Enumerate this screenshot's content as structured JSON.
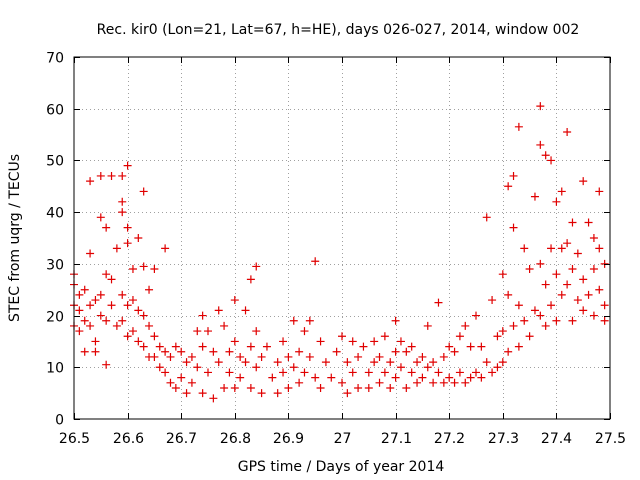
{
  "chart_data": {
    "type": "scatter",
    "title": "Rec. kir0 (Lon=21, Lat=67, h=HE), days 026-027, 2014, window 002",
    "xlabel": "GPS time / Days of year 2014",
    "ylabel": "STEC from uqrg / TECUs",
    "xlim": [
      26.5,
      27.5
    ],
    "ylim": [
      0,
      70
    ],
    "xticks": [
      "26.5",
      "26.6",
      "26.7",
      "26.8",
      "26.9",
      "27",
      "27.1",
      "27.2",
      "27.3",
      "27.4",
      "27.5"
    ],
    "yticks": [
      "0",
      "10",
      "20",
      "30",
      "40",
      "50",
      "60",
      "70"
    ],
    "grid": true,
    "marker": "plus",
    "color": "#e00000",
    "series": [
      {
        "name": "STEC",
        "points": [
          [
            26.5,
            28.0
          ],
          [
            26.5,
            26.0
          ],
          [
            26.5,
            22.0
          ],
          [
            26.5,
            18.0
          ],
          [
            26.51,
            24.0
          ],
          [
            26.51,
            21.0
          ],
          [
            26.51,
            17.0
          ],
          [
            26.52,
            25.0
          ],
          [
            26.52,
            19.0
          ],
          [
            26.52,
            13.0
          ],
          [
            26.53,
            46.0
          ],
          [
            26.53,
            32.0
          ],
          [
            26.53,
            22.0
          ],
          [
            26.53,
            18.0
          ],
          [
            26.54,
            23.0
          ],
          [
            26.54,
            15.0
          ],
          [
            26.54,
            13.0
          ],
          [
            26.55,
            47.0
          ],
          [
            26.55,
            39.0
          ],
          [
            26.55,
            24.0
          ],
          [
            26.55,
            20.0
          ],
          [
            26.56,
            37.0
          ],
          [
            26.56,
            28.0
          ],
          [
            26.56,
            19.0
          ],
          [
            26.56,
            10.5
          ],
          [
            26.57,
            47.0
          ],
          [
            26.57,
            27.0
          ],
          [
            26.57,
            22.0
          ],
          [
            26.58,
            33.0
          ],
          [
            26.58,
            18.0
          ],
          [
            26.59,
            47.0
          ],
          [
            26.59,
            42.0
          ],
          [
            26.59,
            40.0
          ],
          [
            26.59,
            24.0
          ],
          [
            26.59,
            19.0
          ],
          [
            26.6,
            49.0
          ],
          [
            26.6,
            37.0
          ],
          [
            26.6,
            34.0
          ],
          [
            26.6,
            22.0
          ],
          [
            26.6,
            16.0
          ],
          [
            26.61,
            29.0
          ],
          [
            26.61,
            23.0
          ],
          [
            26.61,
            17.0
          ],
          [
            26.62,
            35.0
          ],
          [
            26.62,
            21.0
          ],
          [
            26.62,
            15.0
          ],
          [
            26.63,
            44.0
          ],
          [
            26.63,
            29.5
          ],
          [
            26.63,
            20.0
          ],
          [
            26.63,
            14.0
          ],
          [
            26.64,
            25.0
          ],
          [
            26.64,
            18.0
          ],
          [
            26.64,
            12.0
          ],
          [
            26.65,
            29.0
          ],
          [
            26.65,
            16.0
          ],
          [
            26.65,
            12.0
          ],
          [
            26.66,
            14.0
          ],
          [
            26.66,
            10.0
          ],
          [
            26.67,
            33.0
          ],
          [
            26.67,
            13.0
          ],
          [
            26.67,
            9.0
          ],
          [
            26.68,
            12.0
          ],
          [
            26.68,
            7.0
          ],
          [
            26.69,
            14.0
          ],
          [
            26.69,
            6.0
          ],
          [
            26.7,
            13.0
          ],
          [
            26.7,
            8.0
          ],
          [
            26.71,
            11.0
          ],
          [
            26.71,
            5.0
          ],
          [
            26.72,
            12.0
          ],
          [
            26.72,
            7.0
          ],
          [
            26.73,
            17.0
          ],
          [
            26.73,
            10.0
          ],
          [
            26.74,
            20.0
          ],
          [
            26.74,
            14.0
          ],
          [
            26.74,
            5.0
          ],
          [
            26.75,
            17.0
          ],
          [
            26.75,
            9.0
          ],
          [
            26.76,
            13.0
          ],
          [
            26.76,
            4.0
          ],
          [
            26.77,
            21.0
          ],
          [
            26.77,
            11.0
          ],
          [
            26.78,
            18.0
          ],
          [
            26.78,
            6.0
          ],
          [
            26.79,
            13.0
          ],
          [
            26.79,
            9.0
          ],
          [
            26.8,
            23.0
          ],
          [
            26.8,
            15.0
          ],
          [
            26.8,
            6.0
          ],
          [
            26.81,
            12.0
          ],
          [
            26.81,
            8.0
          ],
          [
            26.82,
            21.0
          ],
          [
            26.82,
            11.0
          ],
          [
            26.83,
            27.0
          ],
          [
            26.83,
            14.0
          ],
          [
            26.83,
            6.0
          ],
          [
            26.84,
            29.5
          ],
          [
            26.84,
            17.0
          ],
          [
            26.84,
            10.0
          ],
          [
            26.85,
            12.0
          ],
          [
            26.85,
            5.0
          ],
          [
            26.86,
            14.0
          ],
          [
            26.87,
            8.0
          ],
          [
            26.88,
            11.0
          ],
          [
            26.88,
            5.0
          ],
          [
            26.89,
            15.0
          ],
          [
            26.89,
            9.0
          ],
          [
            26.9,
            12.0
          ],
          [
            26.9,
            6.0
          ],
          [
            26.91,
            19.0
          ],
          [
            26.91,
            10.0
          ],
          [
            26.92,
            13.0
          ],
          [
            26.92,
            7.0
          ],
          [
            26.93,
            17.0
          ],
          [
            26.93,
            9.0
          ],
          [
            26.94,
            19.0
          ],
          [
            26.94,
            12.0
          ],
          [
            26.95,
            30.5
          ],
          [
            26.95,
            8.0
          ],
          [
            26.96,
            15.0
          ],
          [
            26.96,
            6.0
          ],
          [
            26.97,
            11.0
          ],
          [
            26.98,
            8.0
          ],
          [
            26.99,
            13.0
          ],
          [
            27.0,
            16.0
          ],
          [
            27.0,
            7.0
          ],
          [
            27.01,
            11.0
          ],
          [
            27.01,
            5.0
          ],
          [
            27.02,
            15.0
          ],
          [
            27.02,
            9.0
          ],
          [
            27.03,
            12.0
          ],
          [
            27.03,
            6.0
          ],
          [
            27.04,
            14.0
          ],
          [
            27.05,
            9.0
          ],
          [
            27.05,
            6.0
          ],
          [
            27.06,
            15.0
          ],
          [
            27.06,
            11.0
          ],
          [
            27.07,
            12.0
          ],
          [
            27.07,
            7.0
          ],
          [
            27.08,
            16.0
          ],
          [
            27.08,
            9.0
          ],
          [
            27.09,
            11.0
          ],
          [
            27.09,
            6.0
          ],
          [
            27.1,
            19.0
          ],
          [
            27.1,
            13.0
          ],
          [
            27.1,
            8.0
          ],
          [
            27.11,
            15.0
          ],
          [
            27.11,
            10.0
          ],
          [
            27.12,
            13.0
          ],
          [
            27.12,
            6.0
          ],
          [
            27.13,
            14.0
          ],
          [
            27.13,
            9.0
          ],
          [
            27.14,
            11.0
          ],
          [
            27.14,
            7.0
          ],
          [
            27.15,
            12.0
          ],
          [
            27.15,
            8.0
          ],
          [
            27.16,
            18.0
          ],
          [
            27.16,
            10.0
          ],
          [
            27.17,
            11.0
          ],
          [
            27.17,
            7.0
          ],
          [
            27.18,
            22.5
          ],
          [
            27.18,
            9.0
          ],
          [
            27.19,
            12.0
          ],
          [
            27.19,
            7.0
          ],
          [
            27.2,
            14.0
          ],
          [
            27.2,
            8.0
          ],
          [
            27.21,
            13.0
          ],
          [
            27.21,
            7.0
          ],
          [
            27.22,
            16.0
          ],
          [
            27.22,
            9.0
          ],
          [
            27.23,
            18.0
          ],
          [
            27.23,
            7.0
          ],
          [
            27.24,
            14.0
          ],
          [
            27.24,
            8.0
          ],
          [
            27.25,
            20.0
          ],
          [
            27.25,
            9.0
          ],
          [
            27.26,
            14.0
          ],
          [
            27.26,
            8.0
          ],
          [
            27.27,
            39.0
          ],
          [
            27.27,
            11.0
          ],
          [
            27.28,
            23.0
          ],
          [
            27.28,
            9.0
          ],
          [
            27.29,
            16.0
          ],
          [
            27.29,
            10.0
          ],
          [
            27.3,
            28.0
          ],
          [
            27.3,
            17.0
          ],
          [
            27.3,
            11.0
          ],
          [
            27.31,
            45.0
          ],
          [
            27.31,
            24.0
          ],
          [
            27.31,
            13.0
          ],
          [
            27.32,
            47.0
          ],
          [
            27.32,
            37.0
          ],
          [
            27.32,
            18.0
          ],
          [
            27.33,
            56.5
          ],
          [
            27.33,
            22.0
          ],
          [
            27.33,
            14.0
          ],
          [
            27.34,
            33.0
          ],
          [
            27.34,
            19.0
          ],
          [
            27.35,
            29.0
          ],
          [
            27.35,
            16.0
          ],
          [
            27.36,
            43.0
          ],
          [
            27.36,
            21.0
          ],
          [
            27.37,
            60.5
          ],
          [
            27.37,
            53.0
          ],
          [
            27.37,
            30.0
          ],
          [
            27.37,
            20.0
          ],
          [
            27.38,
            51.0
          ],
          [
            27.38,
            26.0
          ],
          [
            27.38,
            18.0
          ],
          [
            27.39,
            50.0
          ],
          [
            27.39,
            33.0
          ],
          [
            27.39,
            22.0
          ],
          [
            27.4,
            42.0
          ],
          [
            27.4,
            28.0
          ],
          [
            27.4,
            19.0
          ],
          [
            27.41,
            44.0
          ],
          [
            27.41,
            33.0
          ],
          [
            27.41,
            24.0
          ],
          [
            27.42,
            55.5
          ],
          [
            27.42,
            34.0
          ],
          [
            27.42,
            26.0
          ],
          [
            27.43,
            38.0
          ],
          [
            27.43,
            29.0
          ],
          [
            27.43,
            19.0
          ],
          [
            27.44,
            32.0
          ],
          [
            27.44,
            23.0
          ],
          [
            27.45,
            46.0
          ],
          [
            27.45,
            27.0
          ],
          [
            27.45,
            21.0
          ],
          [
            27.46,
            38.0
          ],
          [
            27.46,
            24.0
          ],
          [
            27.47,
            35.0
          ],
          [
            27.47,
            29.0
          ],
          [
            27.47,
            20.0
          ],
          [
            27.48,
            44.0
          ],
          [
            27.48,
            33.0
          ],
          [
            27.48,
            25.0
          ],
          [
            27.49,
            30.0
          ],
          [
            27.49,
            22.0
          ],
          [
            27.49,
            19.0
          ]
        ]
      }
    ]
  }
}
